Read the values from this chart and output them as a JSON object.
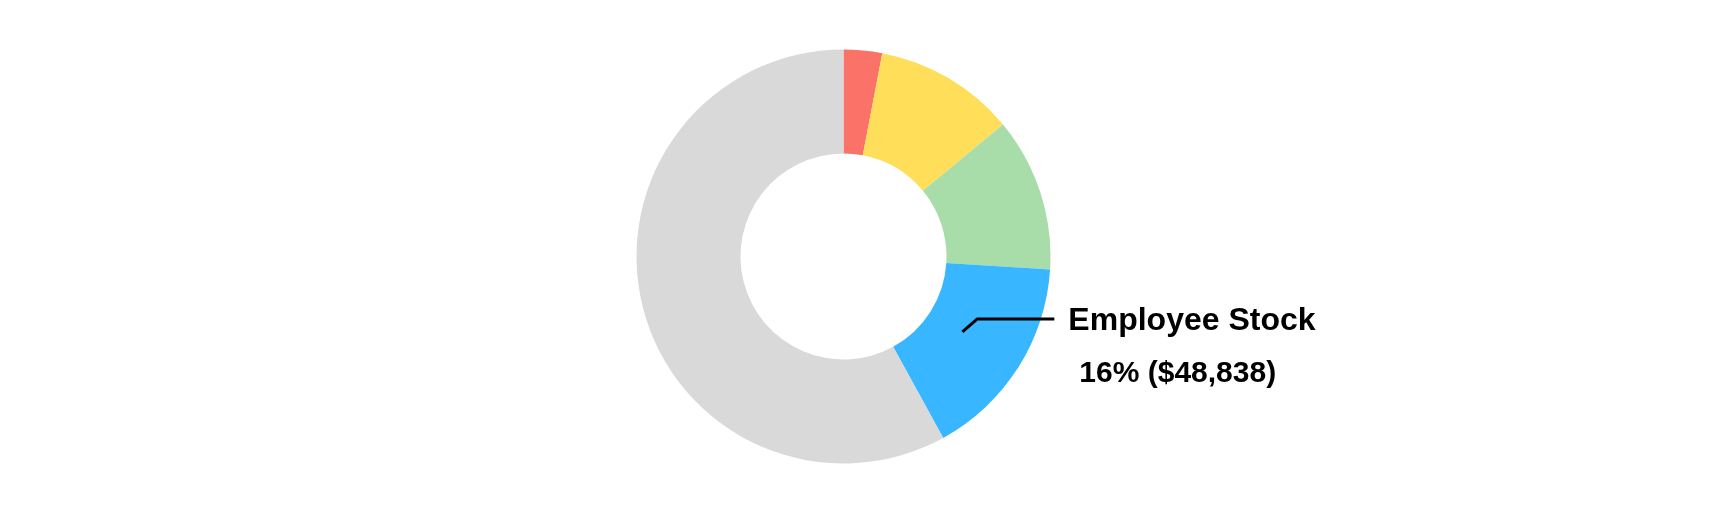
{
  "chart_data": {
    "type": "donut",
    "categories": [
      null,
      null,
      null,
      "Employee Stock",
      null
    ],
    "values": [
      3,
      11,
      12,
      16,
      58
    ],
    "colors": [
      "#fa7268",
      "#ffde59",
      "#a8ddaa",
      "#38b6ff",
      "#d9d9d9"
    ],
    "value_labels": [
      null,
      null,
      null,
      "16% ($48,838)",
      null
    ],
    "legend": false
  }
}
